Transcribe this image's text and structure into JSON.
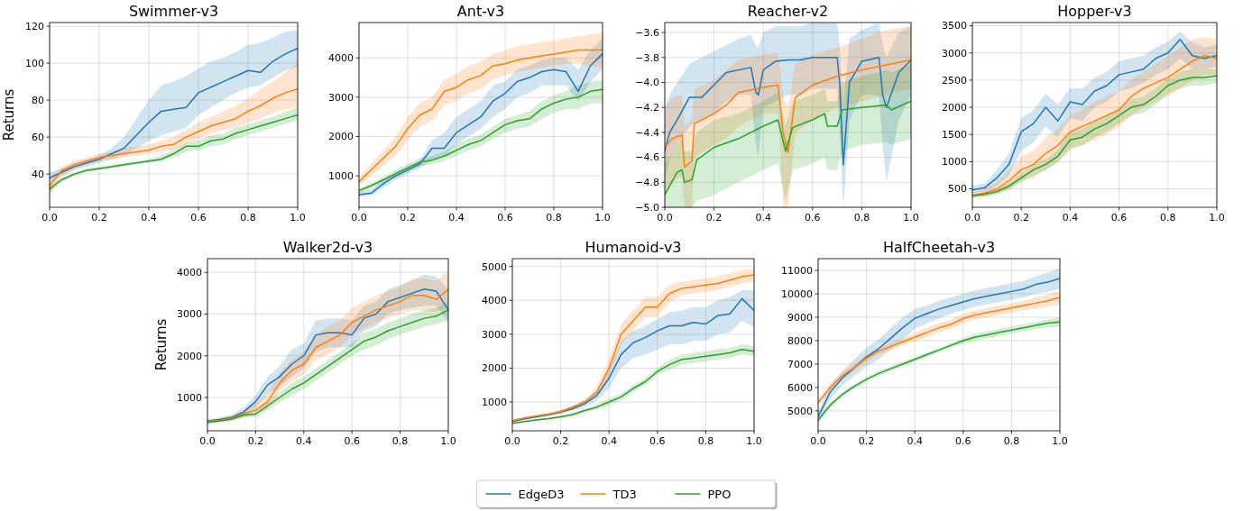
{
  "chart_data": [
    {
      "type": "line",
      "title": "Swimmer-v3",
      "ylabel": "Returns",
      "grid": true,
      "legend": "bottom",
      "xlim": [
        0,
        1
      ],
      "ylim": [
        22,
        122
      ],
      "xticks": [
        {
          "value": 0,
          "label": "0.0"
        },
        {
          "value": 0.2,
          "label": "0.2"
        },
        {
          "value": 0.4,
          "label": "0.4"
        },
        {
          "value": 0.6,
          "label": "0.6"
        },
        {
          "value": 0.8,
          "label": "0.8"
        },
        {
          "value": 1,
          "label": "1.0"
        }
      ],
      "yticks": [
        40,
        60,
        80,
        100,
        120
      ],
      "x": [
        0,
        0.05,
        0.1,
        0.15,
        0.2,
        0.25,
        0.3,
        0.35,
        0.4,
        0.45,
        0.5,
        0.55,
        0.6,
        0.65,
        0.7,
        0.75,
        0.8,
        0.85,
        0.9,
        0.95,
        1
      ],
      "series": [
        {
          "name": "EdgeD3",
          "color": "#1f77b4",
          "values": [
            38,
            41,
            44,
            46,
            48,
            51,
            54,
            61,
            68,
            74,
            75,
            76,
            84,
            87,
            90,
            93,
            96,
            95,
            101,
            105,
            108
          ],
          "lower": [
            36,
            39,
            42,
            44,
            46,
            48,
            50,
            54,
            58,
            61,
            63,
            65,
            72,
            76,
            80,
            84,
            87,
            88,
            92,
            96,
            98
          ],
          "upper": [
            41,
            43,
            46,
            48,
            50,
            54,
            60,
            70,
            80,
            88,
            90,
            93,
            97,
            101,
            103,
            106,
            110,
            111,
            114,
            117,
            118
          ]
        },
        {
          "name": "TD3",
          "color": "#ff7f0e",
          "values": [
            34,
            42,
            45,
            47,
            49,
            50,
            51,
            52,
            53,
            55,
            56,
            60,
            63,
            66,
            68,
            70,
            74,
            77,
            81,
            84,
            86
          ],
          "lower": [
            28,
            39,
            43,
            45,
            47,
            48,
            49,
            50,
            51,
            52,
            53,
            56,
            59,
            62,
            64,
            65,
            68,
            70,
            73,
            75,
            76
          ],
          "upper": [
            38,
            44,
            47,
            49,
            51,
            52,
            54,
            55,
            56,
            58,
            60,
            64,
            68,
            71,
            74,
            77,
            81,
            86,
            90,
            95,
            100
          ]
        },
        {
          "name": "PPO",
          "color": "#2ca02c",
          "values": [
            32,
            37,
            40,
            42,
            43,
            44,
            45,
            46,
            47,
            48,
            51,
            55,
            55,
            58,
            59,
            62,
            64,
            66,
            68,
            70,
            72
          ],
          "lower": [
            30,
            36,
            39,
            41,
            42,
            43,
            44,
            45,
            46,
            47,
            49,
            52,
            53,
            55,
            56,
            59,
            61,
            63,
            65,
            67,
            69
          ],
          "upper": [
            34,
            38,
            41,
            43,
            44,
            45,
            46,
            47,
            48,
            50,
            53,
            57,
            58,
            61,
            62,
            65,
            67,
            69,
            71,
            74,
            76
          ]
        }
      ]
    },
    {
      "type": "line",
      "title": "Ant-v3",
      "grid": true,
      "xlim": [
        0,
        1
      ],
      "ylim": [
        200,
        4900
      ],
      "xticks": [
        {
          "value": 0,
          "label": "0.0"
        },
        {
          "value": 0.2,
          "label": "0.2"
        },
        {
          "value": 0.4,
          "label": "0.4"
        },
        {
          "value": 0.6,
          "label": "0.6"
        },
        {
          "value": 0.8,
          "label": "0.8"
        },
        {
          "value": 1,
          "label": "1.0"
        }
      ],
      "yticks": [
        1000,
        2000,
        3000,
        4000
      ],
      "x": [
        0,
        0.05,
        0.1,
        0.15,
        0.2,
        0.25,
        0.3,
        0.35,
        0.4,
        0.45,
        0.5,
        0.55,
        0.6,
        0.65,
        0.7,
        0.75,
        0.8,
        0.85,
        0.9,
        0.95,
        1
      ],
      "series": [
        {
          "color": "#1f77b4",
          "values": [
            520,
            560,
            800,
            1000,
            1150,
            1300,
            1700,
            1700,
            2100,
            2300,
            2500,
            2900,
            3100,
            3400,
            3500,
            3650,
            3700,
            3650,
            3150,
            3800,
            4100
          ],
          "lower": [
            450,
            500,
            700,
            900,
            1050,
            1200,
            1400,
            1500,
            1800,
            2000,
            2200,
            2500,
            2700,
            3000,
            3100,
            3300,
            3300,
            3300,
            2900,
            3400,
            3700
          ],
          "upper": [
            600,
            650,
            900,
            1100,
            1250,
            1400,
            1900,
            2100,
            2500,
            2700,
            2900,
            3300,
            3400,
            3700,
            3800,
            3950,
            4000,
            4000,
            3700,
            4200,
            4500
          ]
        },
        {
          "color": "#ff7f0e",
          "values": [
            850,
            1150,
            1450,
            1750,
            2200,
            2550,
            2700,
            3150,
            3250,
            3450,
            3550,
            3800,
            3850,
            3950,
            4000,
            4050,
            4100,
            4150,
            4200,
            4200,
            4200
          ],
          "lower": [
            750,
            1000,
            1250,
            1500,
            1900,
            2250,
            2400,
            2800,
            2900,
            3100,
            3200,
            3450,
            3550,
            3650,
            3700,
            3750,
            3800,
            3850,
            3850,
            3800,
            3750
          ],
          "upper": [
            950,
            1300,
            1650,
            2000,
            2500,
            2850,
            3000,
            3450,
            3600,
            3800,
            3900,
            4100,
            4200,
            4300,
            4350,
            4400,
            4450,
            4500,
            4550,
            4600,
            4650
          ]
        },
        {
          "color": "#2ca02c",
          "values": [
            620,
            750,
            900,
            1050,
            1200,
            1350,
            1400,
            1500,
            1650,
            1800,
            1900,
            2100,
            2300,
            2400,
            2450,
            2700,
            2850,
            2950,
            3000,
            3150,
            3200
          ],
          "lower": [
            560,
            680,
            820,
            950,
            1100,
            1250,
            1300,
            1380,
            1500,
            1650,
            1750,
            1950,
            2100,
            2200,
            2250,
            2450,
            2600,
            2700,
            2700,
            2850,
            2850
          ],
          "upper": [
            680,
            820,
            980,
            1150,
            1300,
            1450,
            1500,
            1620,
            1800,
            1950,
            2050,
            2250,
            2450,
            2550,
            2650,
            2900,
            3050,
            3150,
            3300,
            3400,
            3450
          ]
        }
      ]
    },
    {
      "type": "line",
      "title": "Reacher-v2",
      "grid": true,
      "xlim": [
        0,
        1
      ],
      "ylim": [
        -5.0,
        -3.52
      ],
      "xticks": [
        {
          "value": 0,
          "label": "0.0"
        },
        {
          "value": 0.2,
          "label": "0.2"
        },
        {
          "value": 0.4,
          "label": "0.4"
        },
        {
          "value": 0.6,
          "label": "0.6"
        },
        {
          "value": 0.8,
          "label": "0.8"
        },
        {
          "value": 1,
          "label": "1.0"
        }
      ],
      "yticks": [
        {
          "value": -5.0,
          "label": "−5.0"
        },
        {
          "value": -4.8,
          "label": "−4.8"
        },
        {
          "value": -4.6,
          "label": "−4.6"
        },
        {
          "value": -4.4,
          "label": "−4.4"
        },
        {
          "value": -4.2,
          "label": "−4.2"
        },
        {
          "value": -4.0,
          "label": "−4.0"
        },
        {
          "value": -3.8,
          "label": "−3.8"
        },
        {
          "value": -3.6,
          "label": "−3.6"
        }
      ],
      "series": [
        {
          "color": "#1f77b4",
          "x": [
            0,
            0.02,
            0.05,
            0.1,
            0.15,
            0.2,
            0.25,
            0.3,
            0.35,
            0.37,
            0.38,
            0.4,
            0.45,
            0.5,
            0.55,
            0.6,
            0.65,
            0.7,
            0.71,
            0.725,
            0.75,
            0.8,
            0.87,
            0.885,
            0.9,
            0.95,
            1.0
          ],
          "values": [
            -4.55,
            -4.4,
            -4.3,
            -4.12,
            -4.12,
            -4.02,
            -3.92,
            -3.9,
            -3.88,
            -4.08,
            -4.1,
            -3.9,
            -3.83,
            -3.82,
            -3.82,
            -3.8,
            -3.8,
            -3.8,
            -4.0,
            -4.66,
            -4.0,
            -3.83,
            -3.8,
            -4.1,
            -4.2,
            -3.92,
            -3.82
          ],
          "lower": [
            -4.8,
            -4.6,
            -4.5,
            -4.35,
            -4.3,
            -4.25,
            -4.15,
            -4.1,
            -4.1,
            -4.5,
            -4.6,
            -4.2,
            -4.15,
            -4.1,
            -4.1,
            -4.05,
            -4.05,
            -4.05,
            -4.4,
            -5.0,
            -4.3,
            -4.1,
            -4.1,
            -4.5,
            -4.8,
            -4.3,
            -4.1
          ],
          "upper": [
            -4.2,
            -4.1,
            -4.0,
            -3.85,
            -3.8,
            -3.75,
            -3.7,
            -3.65,
            -3.62,
            -3.7,
            -3.72,
            -3.6,
            -3.55,
            -3.55,
            -3.55,
            -3.52,
            -3.52,
            -3.52,
            -3.7,
            -4.2,
            -3.65,
            -3.58,
            -3.52,
            -3.7,
            -3.8,
            -3.6,
            -3.55
          ]
        },
        {
          "color": "#ff7f0e",
          "x": [
            0,
            0.03,
            0.07,
            0.08,
            0.11,
            0.12,
            0.2,
            0.25,
            0.3,
            0.35,
            0.4,
            0.46,
            0.48,
            0.5,
            0.53,
            0.6,
            0.7,
            0.8,
            0.9,
            1.0
          ],
          "values": [
            -4.52,
            -4.45,
            -4.42,
            -4.68,
            -4.63,
            -4.33,
            -4.25,
            -4.18,
            -4.08,
            -4.06,
            -4.04,
            -4.02,
            -4.4,
            -4.56,
            -4.12,
            -4.02,
            -3.95,
            -3.9,
            -3.86,
            -3.82
          ],
          "lower": [
            -4.9,
            -4.8,
            -4.75,
            -5.0,
            -5.0,
            -4.6,
            -4.5,
            -4.45,
            -4.35,
            -4.3,
            -4.25,
            -4.25,
            -5.0,
            -5.0,
            -4.4,
            -4.3,
            -4.2,
            -4.15,
            -4.1,
            -4.05
          ],
          "upper": [
            -4.2,
            -4.12,
            -4.1,
            -4.35,
            -4.3,
            -4.05,
            -3.98,
            -3.9,
            -3.82,
            -3.8,
            -3.78,
            -3.76,
            -4.1,
            -4.2,
            -3.85,
            -3.78,
            -3.72,
            -3.65,
            -3.58,
            -3.55
          ]
        },
        {
          "color": "#2ca02c",
          "x": [
            0,
            0.05,
            0.07,
            0.08,
            0.11,
            0.13,
            0.2,
            0.3,
            0.4,
            0.46,
            0.49,
            0.52,
            0.6,
            0.65,
            0.66,
            0.7,
            0.72,
            0.8,
            0.9,
            0.92,
            1.0
          ],
          "values": [
            -4.9,
            -4.72,
            -4.7,
            -4.8,
            -4.78,
            -4.62,
            -4.52,
            -4.45,
            -4.35,
            -4.3,
            -4.55,
            -4.36,
            -4.3,
            -4.25,
            -4.35,
            -4.35,
            -4.22,
            -4.2,
            -4.18,
            -4.22,
            -4.15
          ],
          "lower": [
            -5.0,
            -5.0,
            -5.0,
            -5.0,
            -5.0,
            -4.95,
            -4.9,
            -4.8,
            -4.7,
            -4.65,
            -4.95,
            -4.7,
            -4.65,
            -4.6,
            -4.7,
            -4.7,
            -4.55,
            -4.5,
            -4.48,
            -4.5,
            -4.45
          ],
          "upper": [
            -4.65,
            -4.5,
            -4.45,
            -4.55,
            -4.55,
            -4.4,
            -4.3,
            -4.25,
            -4.15,
            -4.08,
            -4.35,
            -4.15,
            -4.1,
            -4.05,
            -4.15,
            -4.15,
            -4.0,
            -3.95,
            -3.9,
            -3.92,
            -3.85
          ]
        }
      ]
    },
    {
      "type": "line",
      "title": "Hopper-v3",
      "grid": true,
      "xlim": [
        0,
        1
      ],
      "ylim": [
        160,
        3560
      ],
      "xticks": [
        {
          "value": 0,
          "label": "0.0"
        },
        {
          "value": 0.2,
          "label": "0.2"
        },
        {
          "value": 0.4,
          "label": "0.4"
        },
        {
          "value": 0.6,
          "label": "0.6"
        },
        {
          "value": 0.8,
          "label": "0.8"
        },
        {
          "value": 1,
          "label": "1.0"
        }
      ],
      "yticks": [
        500,
        1000,
        1500,
        2000,
        2500,
        3000,
        3500
      ],
      "x": [
        0,
        0.05,
        0.1,
        0.15,
        0.2,
        0.25,
        0.3,
        0.35,
        0.4,
        0.45,
        0.5,
        0.55,
        0.6,
        0.65,
        0.7,
        0.75,
        0.8,
        0.85,
        0.9,
        0.95,
        1
      ],
      "series": [
        {
          "color": "#1f77b4",
          "values": [
            480,
            520,
            700,
            950,
            1550,
            1700,
            2000,
            1750,
            2100,
            2050,
            2300,
            2400,
            2600,
            2650,
            2700,
            2900,
            3000,
            3250,
            2950,
            2900,
            2950
          ],
          "lower": [
            420,
            450,
            550,
            750,
            1200,
            1350,
            1650,
            1450,
            1800,
            1750,
            2000,
            2100,
            2300,
            2350,
            2450,
            2600,
            2700,
            2900,
            2700,
            2700,
            2750
          ],
          "upper": [
            560,
            600,
            850,
            1150,
            1800,
            1950,
            2250,
            2050,
            2350,
            2350,
            2550,
            2650,
            2850,
            2900,
            2950,
            3100,
            3200,
            3400,
            3200,
            3100,
            3150
          ]
        },
        {
          "color": "#ff7f0e",
          "values": [
            380,
            420,
            500,
            650,
            850,
            950,
            1150,
            1300,
            1550,
            1650,
            1750,
            1850,
            1950,
            2200,
            2350,
            2450,
            2550,
            2700,
            2850,
            2950,
            2900
          ],
          "lower": [
            330,
            350,
            400,
            500,
            650,
            700,
            850,
            1000,
            1200,
            1300,
            1400,
            1500,
            1650,
            1850,
            2000,
            2100,
            2200,
            2350,
            2500,
            2600,
            2600
          ],
          "upper": [
            430,
            500,
            620,
            850,
            1100,
            1200,
            1450,
            1600,
            1850,
            1950,
            2100,
            2200,
            2300,
            2500,
            2650,
            2800,
            2950,
            3100,
            3250,
            3300,
            3250
          ]
        },
        {
          "color": "#2ca02c",
          "values": [
            370,
            400,
            450,
            550,
            700,
            850,
            950,
            1100,
            1400,
            1450,
            1600,
            1700,
            1850,
            2000,
            2050,
            2200,
            2400,
            2500,
            2550,
            2550,
            2580
          ],
          "lower": [
            340,
            360,
            400,
            480,
            620,
            750,
            850,
            980,
            1250,
            1300,
            1450,
            1550,
            1700,
            1850,
            1900,
            2050,
            2250,
            2350,
            2400,
            2400,
            2450
          ],
          "upper": [
            400,
            440,
            500,
            620,
            780,
            950,
            1050,
            1220,
            1550,
            1600,
            1750,
            1850,
            2000,
            2150,
            2200,
            2350,
            2550,
            2650,
            2700,
            2700,
            2700
          ]
        }
      ]
    },
    {
      "type": "line",
      "title": "Walker2d-v3",
      "ylabel": "Returns",
      "grid": true,
      "xlim": [
        0,
        1
      ],
      "ylim": [
        200,
        4330
      ],
      "xticks": [
        {
          "value": 0,
          "label": "0.0"
        },
        {
          "value": 0.2,
          "label": "0.2"
        },
        {
          "value": 0.4,
          "label": "0.4"
        },
        {
          "value": 0.6,
          "label": "0.6"
        },
        {
          "value": 0.8,
          "label": "0.8"
        },
        {
          "value": 1,
          "label": "1.0"
        }
      ],
      "yticks": [
        1000,
        2000,
        3000,
        4000
      ],
      "x": [
        0,
        0.05,
        0.1,
        0.15,
        0.2,
        0.25,
        0.3,
        0.35,
        0.4,
        0.45,
        0.5,
        0.55,
        0.6,
        0.65,
        0.7,
        0.75,
        0.8,
        0.85,
        0.9,
        0.95,
        1
      ],
      "series": [
        {
          "color": "#1f77b4",
          "values": [
            430,
            470,
            520,
            650,
            900,
            1300,
            1500,
            1800,
            2000,
            2500,
            2550,
            2550,
            2500,
            2900,
            3000,
            3300,
            3400,
            3500,
            3600,
            3550,
            3100
          ],
          "lower": [
            380,
            420,
            460,
            550,
            750,
            1100,
            1250,
            1500,
            1700,
            2100,
            2200,
            2200,
            2200,
            2600,
            2700,
            3000,
            3100,
            3150,
            3200,
            3200,
            2800
          ],
          "upper": [
            480,
            520,
            580,
            750,
            1050,
            1500,
            1750,
            2150,
            2300,
            2850,
            2900,
            2900,
            2850,
            3200,
            3300,
            3600,
            3700,
            3800,
            3950,
            3900,
            3600
          ]
        },
        {
          "color": "#ff7f0e",
          "values": [
            420,
            450,
            500,
            600,
            700,
            900,
            1350,
            1650,
            1800,
            2200,
            2350,
            2500,
            2800,
            2950,
            3100,
            3200,
            3300,
            3450,
            3450,
            3350,
            3600
          ],
          "lower": [
            380,
            410,
            450,
            520,
            600,
            750,
            1150,
            1400,
            1550,
            1900,
            2050,
            2200,
            2500,
            2650,
            2800,
            2900,
            3000,
            3100,
            3100,
            3050,
            3200
          ],
          "upper": [
            460,
            500,
            560,
            700,
            850,
            1100,
            1600,
            1900,
            2100,
            2500,
            2700,
            2850,
            3150,
            3300,
            3450,
            3550,
            3650,
            3850,
            3850,
            3800,
            4050
          ]
        },
        {
          "color": "#2ca02c",
          "values": [
            400,
            440,
            480,
            580,
            600,
            800,
            1000,
            1200,
            1350,
            1550,
            1750,
            1950,
            2150,
            2350,
            2450,
            2600,
            2700,
            2800,
            2900,
            2950,
            3100
          ],
          "lower": [
            370,
            410,
            440,
            520,
            530,
            700,
            880,
            1050,
            1200,
            1400,
            1600,
            1800,
            2000,
            2150,
            2250,
            2400,
            2500,
            2600,
            2700,
            2750,
            2850
          ],
          "upper": [
            430,
            470,
            520,
            640,
            680,
            900,
            1120,
            1350,
            1500,
            1700,
            1900,
            2100,
            2300,
            2550,
            2650,
            2800,
            2900,
            3000,
            3100,
            3150,
            3300
          ]
        }
      ]
    },
    {
      "type": "line",
      "title": "Humanoid-v3",
      "grid": true,
      "xlim": [
        0,
        1
      ],
      "ylim": [
        150,
        5230
      ],
      "xticks": [
        {
          "value": 0,
          "label": "0.0"
        },
        {
          "value": 0.2,
          "label": "0.2"
        },
        {
          "value": 0.4,
          "label": "0.4"
        },
        {
          "value": 0.6,
          "label": "0.6"
        },
        {
          "value": 0.8,
          "label": "0.8"
        },
        {
          "value": 1,
          "label": "1.0"
        }
      ],
      "yticks": [
        1000,
        2000,
        3000,
        4000,
        5000
      ],
      "x": [
        0,
        0.05,
        0.1,
        0.15,
        0.2,
        0.25,
        0.3,
        0.35,
        0.4,
        0.45,
        0.5,
        0.55,
        0.6,
        0.65,
        0.7,
        0.75,
        0.8,
        0.85,
        0.9,
        0.95,
        1
      ],
      "series": [
        {
          "color": "#1f77b4",
          "values": [
            420,
            500,
            560,
            620,
            700,
            800,
            950,
            1200,
            1700,
            2400,
            2750,
            2900,
            3100,
            3250,
            3250,
            3350,
            3300,
            3550,
            3600,
            4050,
            3700
          ],
          "lower": [
            400,
            470,
            530,
            580,
            650,
            750,
            850,
            1050,
            1400,
            2000,
            2300,
            2400,
            2550,
            2700,
            2700,
            2800,
            2800,
            3000,
            3050,
            3400,
            3200
          ],
          "upper": [
            450,
            530,
            600,
            660,
            760,
            880,
            1050,
            1350,
            2000,
            2800,
            3100,
            3250,
            3450,
            3650,
            3700,
            3800,
            3800,
            4000,
            4100,
            4300,
            4300
          ]
        },
        {
          "color": "#ff7f0e",
          "values": [
            450,
            530,
            590,
            640,
            720,
            850,
            1000,
            1300,
            2000,
            3000,
            3400,
            3800,
            3800,
            4200,
            4350,
            4400,
            4450,
            4500,
            4600,
            4700,
            4750
          ],
          "lower": [
            420,
            500,
            560,
            610,
            680,
            800,
            920,
            1150,
            1750,
            2700,
            3100,
            3500,
            3500,
            3950,
            4150,
            4200,
            4250,
            4300,
            4400,
            4500,
            4550
          ],
          "upper": [
            480,
            560,
            620,
            680,
            770,
            900,
            1080,
            1450,
            2250,
            3300,
            3700,
            4100,
            4100,
            4450,
            4550,
            4600,
            4650,
            4700,
            4800,
            4900,
            4950
          ]
        },
        {
          "color": "#2ca02c",
          "values": [
            370,
            420,
            470,
            510,
            560,
            630,
            750,
            850,
            1000,
            1150,
            1400,
            1600,
            1900,
            2100,
            2250,
            2300,
            2350,
            2400,
            2450,
            2550,
            2500
          ],
          "lower": [
            350,
            400,
            440,
            480,
            520,
            580,
            700,
            780,
            900,
            1050,
            1300,
            1500,
            1800,
            1950,
            2100,
            2150,
            2200,
            2250,
            2300,
            2400,
            2350
          ],
          "upper": [
            390,
            440,
            500,
            540,
            600,
            680,
            800,
            920,
            1100,
            1250,
            1500,
            1700,
            2000,
            2250,
            2400,
            2450,
            2500,
            2550,
            2600,
            2700,
            2650
          ]
        }
      ]
    },
    {
      "type": "line",
      "title": "HalfCheetah-v3",
      "grid": true,
      "xlim": [
        0,
        1
      ],
      "ylim": [
        4150,
        11500
      ],
      "xticks": [
        {
          "value": 0,
          "label": "0.0"
        },
        {
          "value": 0.2,
          "label": "0.2"
        },
        {
          "value": 0.4,
          "label": "0.4"
        },
        {
          "value": 0.6,
          "label": "0.6"
        },
        {
          "value": 0.8,
          "label": "0.8"
        },
        {
          "value": 1,
          "label": "1.0"
        }
      ],
      "yticks": [
        5000,
        6000,
        7000,
        8000,
        9000,
        10000,
        11000
      ],
      "x": [
        0,
        0.05,
        0.1,
        0.15,
        0.2,
        0.25,
        0.3,
        0.35,
        0.4,
        0.45,
        0.5,
        0.55,
        0.6,
        0.65,
        0.7,
        0.75,
        0.8,
        0.85,
        0.9,
        0.95,
        1
      ],
      "series": [
        {
          "color": "#1f77b4",
          "values": [
            4750,
            5800,
            6400,
            6850,
            7300,
            7650,
            8100,
            8550,
            8950,
            9150,
            9350,
            9500,
            9650,
            9800,
            9900,
            10000,
            10100,
            10200,
            10400,
            10500,
            10650
          ],
          "lower": [
            4550,
            5500,
            6100,
            6500,
            6900,
            7200,
            7600,
            8050,
            8500,
            8750,
            8950,
            9150,
            9300,
            9450,
            9550,
            9650,
            9750,
            9850,
            10000,
            10100,
            10200
          ],
          "upper": [
            4950,
            6100,
            6700,
            7200,
            7700,
            8050,
            8550,
            9000,
            9350,
            9500,
            9700,
            9850,
            10000,
            10150,
            10250,
            10350,
            10450,
            10550,
            10750,
            10900,
            11100
          ]
        },
        {
          "color": "#ff7f0e",
          "values": [
            5350,
            6000,
            6500,
            6850,
            7250,
            7550,
            7750,
            7950,
            8150,
            8350,
            8550,
            8700,
            8950,
            9100,
            9200,
            9300,
            9400,
            9500,
            9600,
            9700,
            9850
          ],
          "lower": [
            5200,
            5850,
            6350,
            6700,
            7100,
            7400,
            7600,
            7800,
            7950,
            8150,
            8350,
            8500,
            8750,
            8900,
            9000,
            9100,
            9200,
            9300,
            9350,
            9450,
            9550
          ],
          "upper": [
            5500,
            6150,
            6650,
            7000,
            7400,
            7700,
            7900,
            8100,
            8350,
            8550,
            8750,
            8900,
            9150,
            9300,
            9400,
            9500,
            9600,
            9700,
            9850,
            9950,
            10150
          ]
        },
        {
          "color": "#2ca02c",
          "values": [
            4600,
            5250,
            5700,
            6050,
            6350,
            6600,
            6800,
            7000,
            7200,
            7400,
            7600,
            7800,
            8000,
            8150,
            8250,
            8350,
            8450,
            8550,
            8650,
            8750,
            8800
          ],
          "lower": [
            4500,
            5150,
            5600,
            5950,
            6250,
            6500,
            6700,
            6900,
            7100,
            7300,
            7500,
            7700,
            7850,
            8000,
            8100,
            8200,
            8300,
            8400,
            8500,
            8550,
            8600
          ],
          "upper": [
            4700,
            5350,
            5800,
            6150,
            6450,
            6700,
            6900,
            7100,
            7300,
            7500,
            7700,
            7900,
            8100,
            8300,
            8400,
            8500,
            8600,
            8700,
            8800,
            8900,
            9000
          ]
        }
      ]
    }
  ]
}
